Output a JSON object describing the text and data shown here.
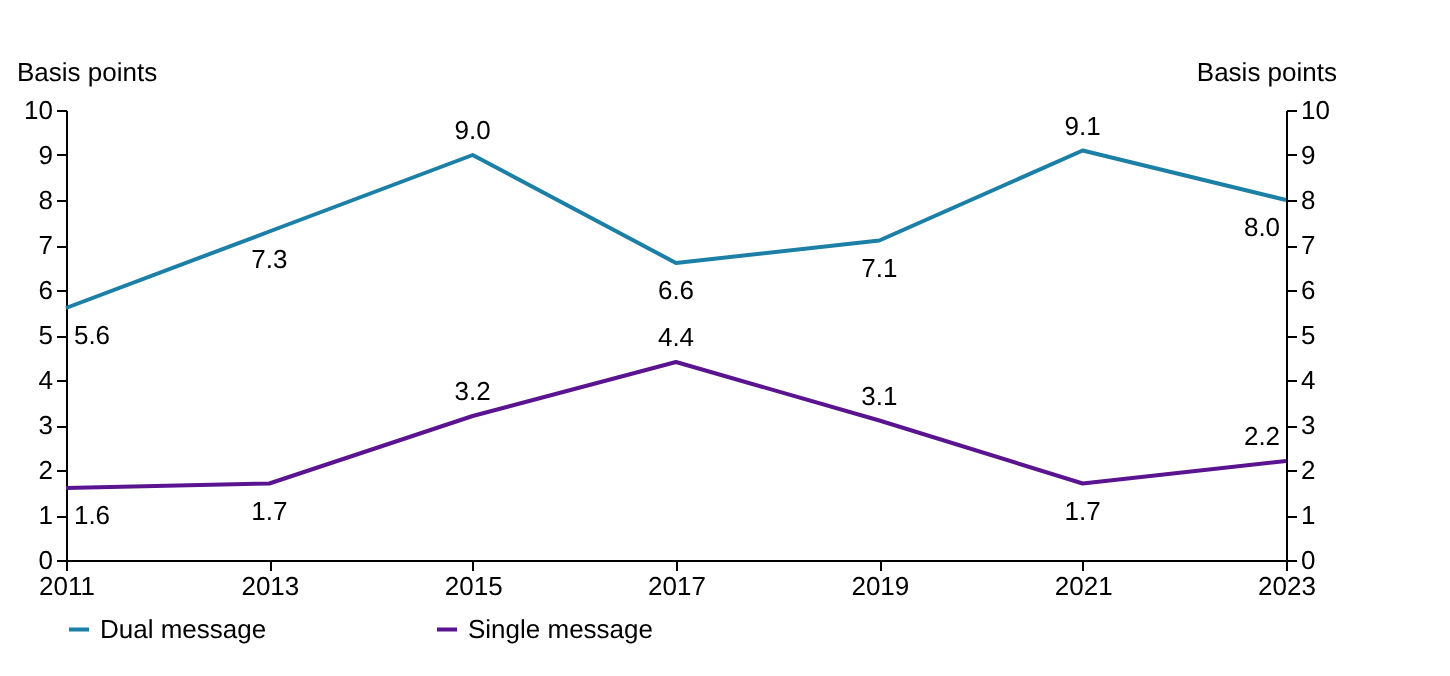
{
  "chart_data": {
    "type": "line",
    "ylabel": "Basis points",
    "y2label": "Basis points",
    "x": [
      2011,
      2013,
      2015,
      2017,
      2019,
      2021,
      2023
    ],
    "series": [
      {
        "name": "Dual message",
        "color": "#1b7fa6",
        "values": [
          5.6,
          7.3,
          9.0,
          6.6,
          7.1,
          9.1,
          8.0
        ],
        "value_labels": [
          "5.6",
          "7.3",
          "9.0",
          "6.6",
          "7.1",
          "9.1",
          "8.0"
        ]
      },
      {
        "name": "Single message",
        "color": "#5a1490",
        "values": [
          1.6,
          1.7,
          3.2,
          4.4,
          3.1,
          1.7,
          2.2
        ],
        "value_labels": [
          "1.6",
          "1.7",
          "3.2",
          "4.4",
          "3.1",
          "1.7",
          "2.2"
        ]
      }
    ],
    "xlim": [
      2011,
      2023
    ],
    "xticks": [
      2011,
      2013,
      2015,
      2017,
      2019,
      2021,
      2023
    ],
    "ylim": [
      0,
      10
    ],
    "yticks": [
      0,
      1,
      2,
      3,
      4,
      5,
      6,
      7,
      8,
      9,
      10
    ],
    "y2lim": [
      0,
      10
    ],
    "y2ticks": [
      0,
      1,
      2,
      3,
      4,
      5,
      6,
      7,
      8,
      9,
      10
    ],
    "grid": false,
    "legend": "bottom",
    "marker": "none",
    "line_style": "solid"
  }
}
